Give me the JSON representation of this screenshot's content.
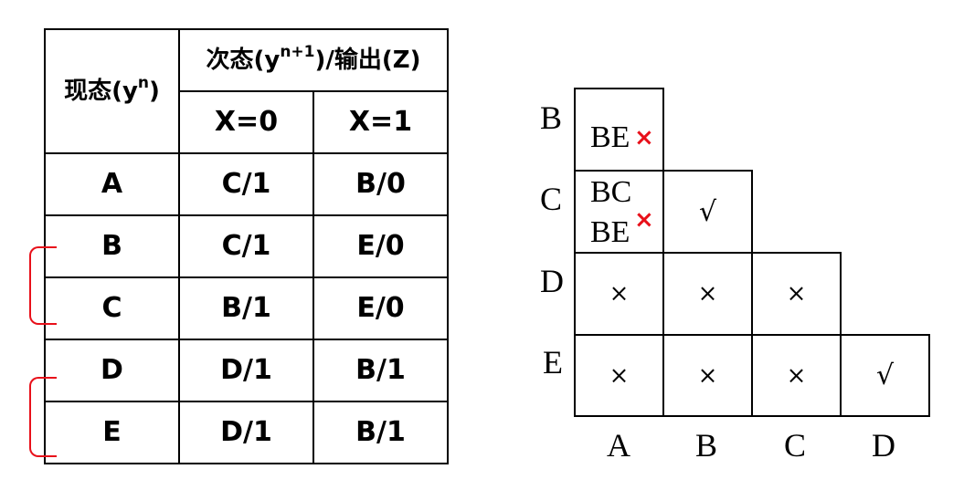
{
  "state_table": {
    "header": {
      "present_state": "现态(y",
      "present_sup": "n",
      "present_close": ")",
      "next_state": "次态(y",
      "next_sup": "n+1",
      "next_rest": ")/输出(Z)",
      "x0": "X=0",
      "x1": "X=1"
    },
    "rows": [
      {
        "state": "A",
        "x0": "C/1",
        "x1": "B/0"
      },
      {
        "state": "B",
        "x0": "C/1",
        "x1": "E/0"
      },
      {
        "state": "C",
        "x0": "B/1",
        "x1": "E/0"
      },
      {
        "state": "D",
        "x0": "D/1",
        "x1": "B/1"
      },
      {
        "state": "E",
        "x0": "D/1",
        "x1": "B/1"
      }
    ],
    "bracket_color": "#e8101a"
  },
  "implication_chart": {
    "row_labels": [
      "B",
      "C",
      "D",
      "E"
    ],
    "col_labels": [
      "A",
      "B",
      "C",
      "D"
    ],
    "cells": {
      "BA": {
        "text": "BE",
        "mark": "×"
      },
      "CA": {
        "line1": "BC",
        "line2": "BE",
        "mark": "×"
      },
      "CB": "√",
      "DA": "×",
      "DB": "×",
      "DC": "×",
      "EA": "×",
      "EB": "×",
      "EC": "×",
      "ED": "√"
    },
    "mark_color": "#e8101a"
  }
}
